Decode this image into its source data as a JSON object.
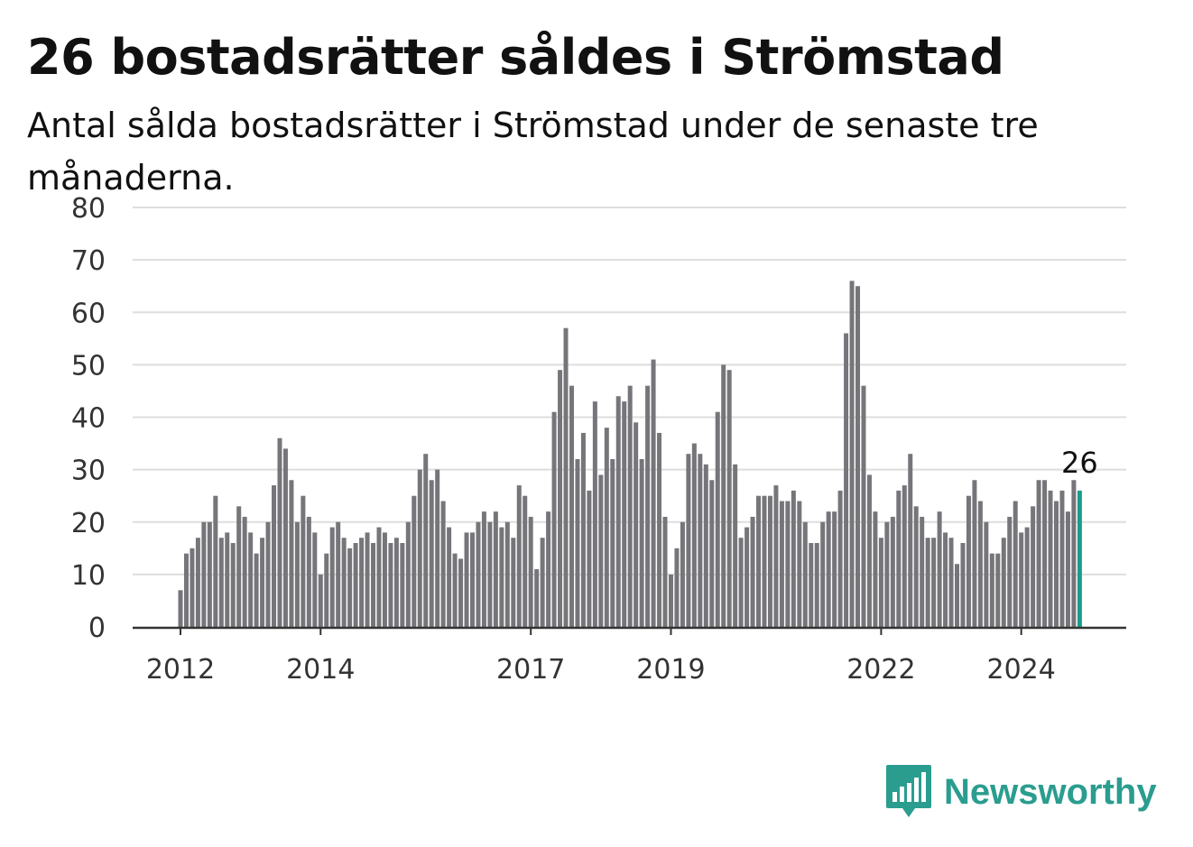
{
  "title": "26 bostadsrätter såldes i Strömstad",
  "subtitle": "Antal sålda bostadsrätter i Strömstad under de senaste tre månaderna.",
  "brand": {
    "name": "Newsworthy",
    "icon": "newsworthy-logo-icon",
    "color": "#2a9d8f"
  },
  "colors": {
    "bar": "#76757a",
    "highlight": "#1a9c8c",
    "grid": "#dddddd",
    "axis": "#333333"
  },
  "chart_data": {
    "type": "bar",
    "title": "26 bostadsrätter såldes i Strömstad",
    "subtitle": "Antal sålda bostadsrätter i Strömstad under de senaste tre månaderna.",
    "xlabel": "",
    "ylabel": "",
    "ylim": [
      0,
      80
    ],
    "yticks": [
      0,
      10,
      20,
      30,
      40,
      50,
      60,
      70,
      80
    ],
    "xticks": [
      "2012",
      "2014",
      "2017",
      "2019",
      "2022",
      "2024"
    ],
    "grid": true,
    "highlight_label": "26",
    "series": [
      {
        "values": [
          7,
          14,
          15,
          17,
          20,
          20,
          25,
          17,
          18,
          16,
          23,
          21,
          18,
          14,
          17,
          20,
          27,
          36,
          34,
          28,
          20,
          25,
          21,
          18,
          10,
          14,
          19,
          20,
          17,
          15,
          16,
          17,
          18,
          16,
          19,
          18,
          16,
          17,
          16,
          20,
          25,
          30,
          33,
          28,
          30,
          24,
          19,
          14,
          13,
          18,
          18,
          20,
          22,
          20,
          22,
          19,
          20,
          17,
          27,
          25,
          21,
          11,
          17,
          22,
          41,
          49,
          57,
          46,
          32,
          37,
          26,
          43,
          29,
          38,
          32,
          44,
          43,
          46,
          39,
          32,
          46,
          51,
          37,
          21,
          10,
          15,
          20,
          33,
          35,
          33,
          31,
          28,
          41,
          50,
          49,
          31,
          17,
          19,
          21,
          25,
          25,
          25,
          27,
          24,
          24,
          26,
          24,
          20,
          16,
          16,
          20,
          22,
          22,
          26,
          56,
          66,
          65,
          46,
          29,
          22,
          17,
          20,
          21,
          26,
          27,
          33,
          23,
          21,
          17,
          17,
          22,
          18,
          17,
          12,
          16,
          25,
          28,
          24,
          20,
          14,
          14,
          17,
          21,
          24,
          18,
          19,
          23,
          28,
          28,
          26,
          24,
          26,
          22,
          28,
          26
        ]
      }
    ]
  }
}
